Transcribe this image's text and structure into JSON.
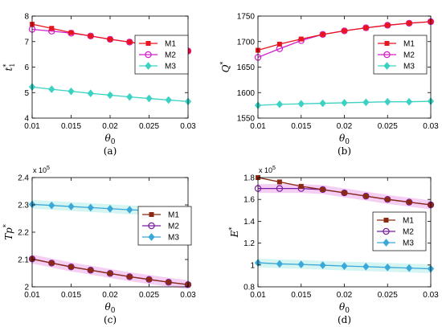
{
  "colors": {
    "M1": "#e8141e",
    "M2": "#d21ec8",
    "M3": "#3cd2c3",
    "M1_dark": "#8b2a10",
    "M2_dark": "#7a1aa0",
    "M3_dark": "#3aa8d8"
  },
  "chart_data": [
    {
      "type": "line",
      "caption": "(a)",
      "xlabel": "θ0",
      "ylabel": "t1*",
      "xlim": [
        0.01,
        0.03
      ],
      "ylim": [
        4,
        8
      ],
      "xticks": [
        "0.01",
        "0.015",
        "0.02",
        "0.025",
        "0.03"
      ],
      "yticks": [
        "4",
        "5",
        "6",
        "7",
        "8"
      ],
      "exponent": "",
      "legend": "top-right",
      "x": [
        0.01,
        0.0125,
        0.015,
        0.0175,
        0.02,
        0.0225,
        0.025,
        0.0275,
        0.03
      ],
      "series": [
        {
          "name": "M1",
          "marker": "square",
          "values": [
            7.68,
            7.52,
            7.35,
            7.22,
            7.09,
            6.98,
            6.86,
            6.75,
            6.63
          ]
        },
        {
          "name": "M2",
          "marker": "circle",
          "values": [
            7.48,
            7.41,
            7.33,
            7.22,
            7.09,
            6.98,
            6.86,
            6.75,
            6.63
          ]
        },
        {
          "name": "M3",
          "marker": "diamond",
          "values": [
            5.22,
            5.13,
            5.05,
            4.97,
            4.9,
            4.83,
            4.77,
            4.71,
            4.65
          ]
        }
      ]
    },
    {
      "type": "line",
      "caption": "(b)",
      "xlabel": "θ0",
      "ylabel": "Q*",
      "xlim": [
        0.01,
        0.03
      ],
      "ylim": [
        1550,
        1750
      ],
      "xticks": [
        "0.01",
        "0.015",
        "0.02",
        "0.025",
        "0.03"
      ],
      "yticks": [
        "1550",
        "1600",
        "1650",
        "1700",
        "1750"
      ],
      "exponent": "",
      "legend": "top-right",
      "x": [
        0.01,
        0.0125,
        0.015,
        0.0175,
        0.02,
        0.0225,
        0.025,
        0.0275,
        0.03
      ],
      "series": [
        {
          "name": "M1",
          "marker": "square",
          "values": [
            1683,
            1695,
            1705,
            1714,
            1721,
            1727,
            1732,
            1736,
            1739
          ]
        },
        {
          "name": "M2",
          "marker": "circle",
          "values": [
            1669,
            1686,
            1702,
            1714,
            1721,
            1727,
            1732,
            1736,
            1739
          ]
        },
        {
          "name": "M3",
          "marker": "diamond",
          "values": [
            1575,
            1577,
            1578,
            1579,
            1580,
            1581,
            1582,
            1582,
            1583
          ]
        }
      ]
    },
    {
      "type": "line",
      "caption": "(c)",
      "xlabel": "θ0",
      "ylabel": "Tp*",
      "xlim": [
        0.01,
        0.03
      ],
      "ylim": [
        2.0,
        2.4
      ],
      "xticks": [
        "0.01",
        "0.015",
        "0.02",
        "0.025",
        "0.03"
      ],
      "yticks": [
        "2",
        "2.1",
        "2.2",
        "2.3",
        "2.4"
      ],
      "exponent": "x 10",
      "exponent_power": "5",
      "legend": "center-right",
      "x": [
        0.01,
        0.0125,
        0.015,
        0.0175,
        0.02,
        0.0225,
        0.025,
        0.0275,
        0.03
      ],
      "series": [
        {
          "name": "M1",
          "marker": "square",
          "values": [
            2.102,
            2.087,
            2.073,
            2.061,
            2.049,
            2.037,
            2.027,
            2.017,
            2.008
          ]
        },
        {
          "name": "M2",
          "marker": "circle",
          "values": [
            2.102,
            2.087,
            2.073,
            2.061,
            2.049,
            2.037,
            2.027,
            2.017,
            2.008
          ]
        },
        {
          "name": "M3",
          "marker": "diamond",
          "values": [
            2.302,
            2.298,
            2.294,
            2.29,
            2.286,
            2.282,
            2.279,
            2.276,
            2.273
          ]
        }
      ]
    },
    {
      "type": "line",
      "caption": "(d)",
      "xlabel": "θ0",
      "ylabel": "E*",
      "xlim": [
        0.01,
        0.03
      ],
      "ylim": [
        0.8,
        1.8
      ],
      "xticks": [
        "0.01",
        "0.015",
        "0.02",
        "0.025",
        "0.03"
      ],
      "yticks": [
        "0.8",
        "1",
        "1.2",
        "1.4",
        "1.6",
        "1.8"
      ],
      "exponent": "x 10",
      "exponent_power": "5",
      "legend": "center-right",
      "x": [
        0.01,
        0.0125,
        0.015,
        0.0175,
        0.02,
        0.0225,
        0.025,
        0.0275,
        0.03
      ],
      "series": [
        {
          "name": "M1",
          "marker": "square",
          "values": [
            1.8,
            1.76,
            1.72,
            1.69,
            1.66,
            1.63,
            1.6,
            1.575,
            1.55
          ]
        },
        {
          "name": "M2",
          "marker": "circle",
          "values": [
            1.7,
            1.7,
            1.7,
            1.69,
            1.66,
            1.63,
            1.6,
            1.575,
            1.55
          ]
        },
        {
          "name": "M3",
          "marker": "diamond",
          "values": [
            1.02,
            1.01,
            1.005,
            0.998,
            0.99,
            0.985,
            0.978,
            0.972,
            0.965
          ]
        }
      ]
    }
  ]
}
